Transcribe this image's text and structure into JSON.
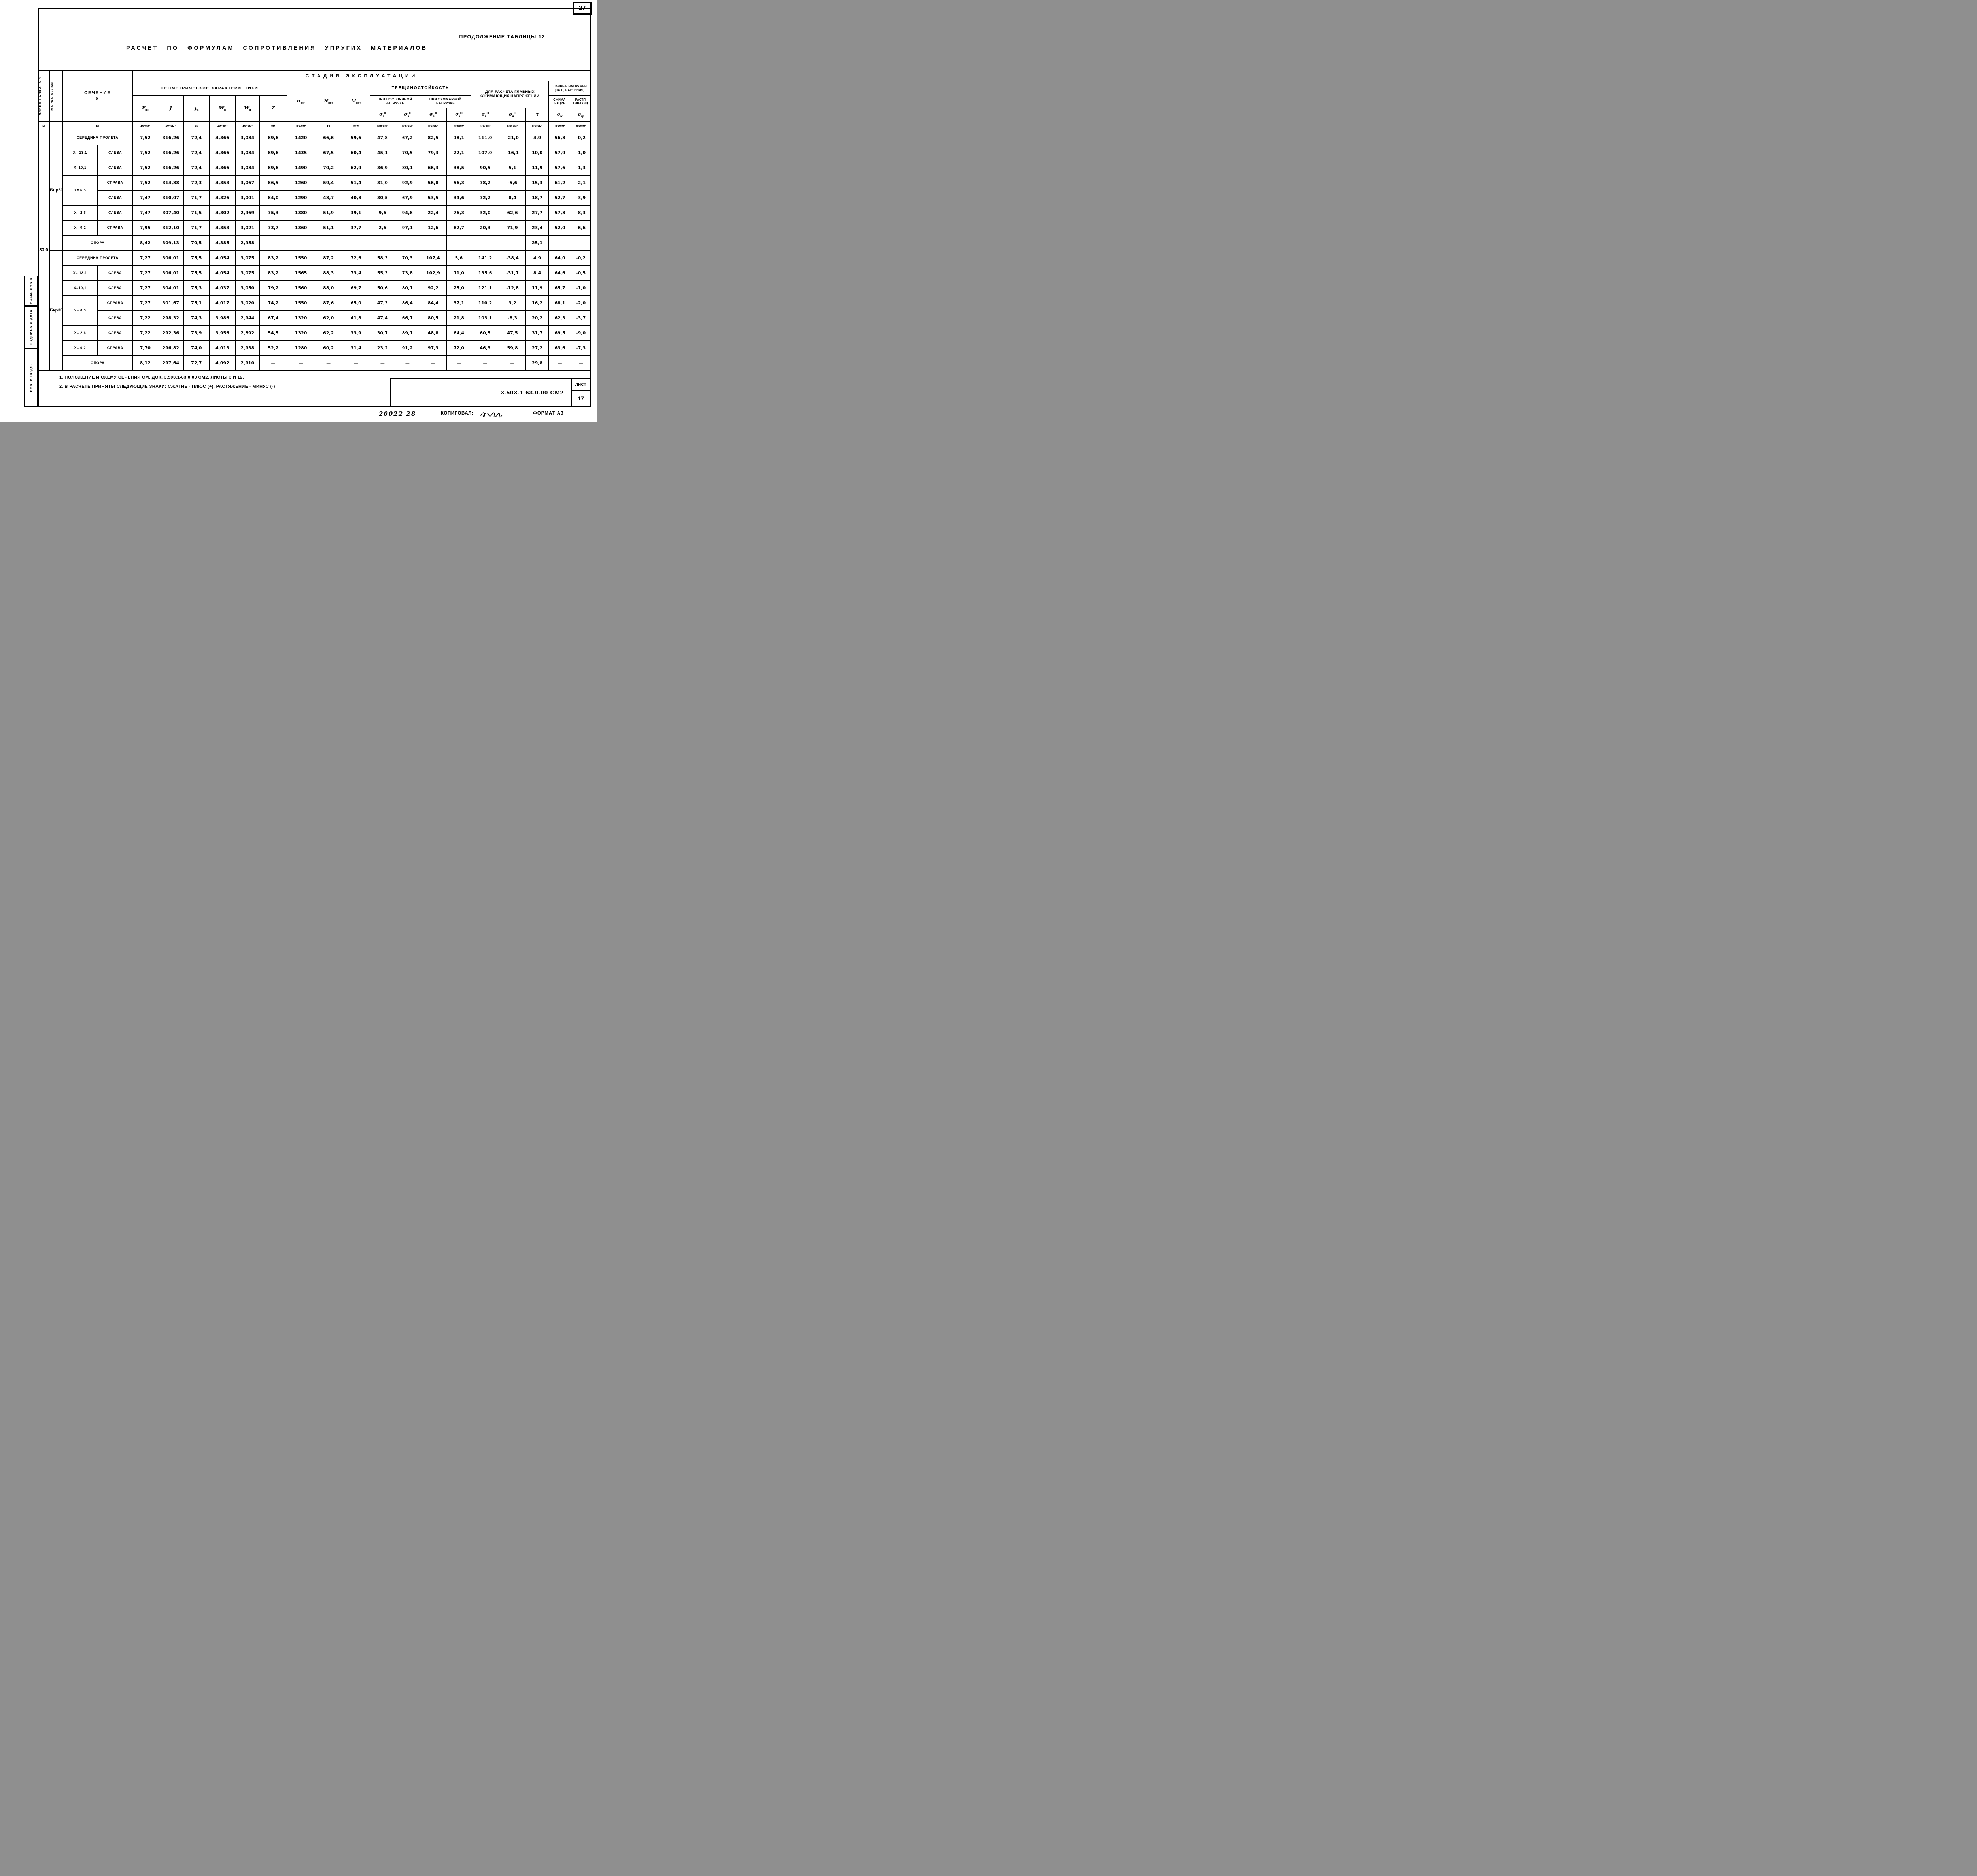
{
  "page": {
    "sheet_number_top": "27",
    "continuation": "ПРОДОЛЖЕНИЕ  ТАБЛИЦЫ 12",
    "title": "РАСЧЕТ ПО ФОРМУЛАМ СОПРОТИВЛЕНИЯ УПРУГИХ МАТЕРИАЛОВ",
    "notes": [
      "1. ПОЛОЖЕНИЕ И СХЕМУ СЕЧЕНИЯ СМ. ДОК. 3.503.1-63.0.00 СМ2, ЛИСТЫ 3 И 12.",
      "2. В РАСЧЕТЕ ПРИНЯТЫ СЛЕДУЮЩИЕ ЗНАКИ: СЖАТИЕ - ПЛЮС (+), РАСТЯЖЕНИЕ - МИНУС (-)"
    ],
    "side_labels": [
      "ВЗАМ. ИНВ.N",
      "ПОДПИСЬ И ДАТА",
      "ИНВ. N ПОДЛ."
    ],
    "stamp": {
      "doc_number": "3.503.1-63.0.00 СМ2",
      "sheet_label": "ЛИСТ",
      "sheet_number": "17"
    },
    "footer": {
      "inventory_number": "20022  28",
      "copied_label": "КОПИРОВАЛ:",
      "format_label": "ФОРМАТ  А3"
    }
  },
  "table": {
    "left_headers": {
      "length": "ДЛИНА БАЛКИ, ℓп",
      "mark": "МАРКА БАЛКИ",
      "section": "СЕЧЕНИЕ",
      "section_x": "X"
    },
    "stage": "СТАДИЯ   ЭКСПЛУАТАЦИИ",
    "groups_header": {
      "geometry": "ГЕОМЕТРИЧЕСКИЕ ХАРАКТЕРИСТИКИ",
      "sigma_pot": {
        "base": "σ",
        "sub": "пот"
      },
      "n_pot": {
        "base": "N",
        "sub": "пот"
      },
      "m_pot": {
        "base": "M",
        "sub": "пот"
      },
      "crack": "ТРЕЩИНОСТОЙКОСТЬ",
      "crack_const": "ПРИ ПОСТОЯННОЙ НАГРУЗКЕ",
      "crack_total": "ПРИ СУММАРНОЙ НАГРУЗКЕ",
      "main_compress": "ДЛЯ РАСЧЕТА ГЛАВ­НЫХ СЖИМАЮЩИХ НАПРЯЖЕНИЙ",
      "principal": "ГЛАВНЫЕ НАПРЯЖЕН. (ПО Ц.Т. СЕЧЕНИЯ)",
      "principal_compress": "СЖИМА­ЮЩИЕ",
      "principal_tension": "РАСТЯ­ГИВАЮЩ."
    },
    "geometry_cols": [
      {
        "base": "F",
        "sub": "пр"
      },
      {
        "base": "J"
      },
      {
        "base": "y",
        "sub": "в"
      },
      {
        "base": "W",
        "sub": "в"
      },
      {
        "base": "W",
        "sub": "н"
      },
      {
        "base": "Z"
      }
    ],
    "symbol_cols": [
      {
        "base": "σ",
        "sub": "в",
        "sup": "II"
      },
      {
        "base": "σ",
        "sub": "н",
        "sup": "II"
      },
      {
        "base": "σ",
        "sub": "в",
        "sup": "III"
      },
      {
        "base": "σ",
        "sub": "н",
        "sup": "III"
      },
      {
        "base": "σ",
        "sub": "в",
        "sup": "III"
      },
      {
        "base": "σ",
        "sub": "н",
        "sup": "III"
      },
      {
        "base": "τ"
      },
      {
        "base": "σ",
        "sub": "гс"
      },
      {
        "base": "σ",
        "sub": "гр"
      }
    ],
    "units_left": [
      "М",
      "—",
      "М"
    ],
    "units": [
      "10³см²",
      "10⁵см⁴",
      "см",
      "10⁵см³",
      "10⁵см³",
      "см",
      "кгс/см²",
      "тс",
      "тс·м",
      "кгс/см²",
      "кгс/см²",
      "кгс/см²",
      "кгс/см²",
      "кгс/см²",
      "кгс/см²",
      "кгс/см²",
      "кгс/см²",
      "кгс/см²"
    ],
    "length_value": "33,0",
    "groups": [
      {
        "mark": "Бпр33",
        "rows": [
          {
            "section": [
              {
                "t": "СЕРЕДИНА ПРОЛЕТА",
                "cs": 2
              }
            ],
            "v": [
              "7,52",
              "316,26",
              "72,4",
              "4,366",
              "3,084",
              "89,6",
              "1420",
              "66,6",
              "59,6",
              "47,8",
              "67,2",
              "82,5",
              "18,1",
              "111,0",
              "-21,0",
              "4,9",
              "56,8",
              "-0,2"
            ]
          },
          {
            "section": [
              {
                "t": "X= 13,1"
              },
              {
                "t": "СЛЕВА"
              }
            ],
            "v": [
              "7,52",
              "316,26",
              "72,4",
              "4,366",
              "3,084",
              "89,6",
              "1435",
              "67,5",
              "60,4",
              "45,1",
              "70,5",
              "79,3",
              "22,1",
              "107,0",
              "-16,1",
              "10,0",
              "57,9",
              "-1,0"
            ]
          },
          {
            "section": [
              {
                "t": "X=10,1"
              },
              {
                "t": "СЛЕВА"
              }
            ],
            "v": [
              "7,52",
              "316,26",
              "72,4",
              "4,366",
              "3,084",
              "89,6",
              "1490",
              "70,2",
              "62,9",
              "36,9",
              "80,1",
              "66,3",
              "38,5",
              "90,5",
              "5,1",
              "11,9",
              "57,6",
              "-1,3"
            ]
          },
          {
            "section": [
              {
                "t": "X= 6,5",
                "rs": 2
              },
              {
                "t": "СПРАВА"
              }
            ],
            "v": [
              "7,52",
              "314,88",
              "72,3",
              "4,353",
              "3,067",
              "86,5",
              "1260",
              "59,4",
              "51,4",
              "31,0",
              "92,9",
              "56,8",
              "56,3",
              "78,2",
              "-5,6",
              "15,3",
              "61,2",
              "-2,1"
            ]
          },
          {
            "section": [
              {
                "t": "СЛЕВА"
              }
            ],
            "v": [
              "7,47",
              "310,07",
              "71,7",
              "4,326",
              "3,001",
              "84,0",
              "1290",
              "48,7",
              "40,8",
              "30,5",
              "67,9",
              "53,5",
              "34,6",
              "72,2",
              "8,4",
              "18,7",
              "52,7",
              "-3,9"
            ]
          },
          {
            "section": [
              {
                "t": "X= 2,6"
              },
              {
                "t": "СЛЕВА"
              }
            ],
            "v": [
              "7,47",
              "307,40",
              "71,5",
              "4,302",
              "2,969",
              "75,3",
              "1380",
              "51,9",
              "39,1",
              "9,6",
              "94,8",
              "22,4",
              "76,3",
              "32,0",
              "62,6",
              "27,7",
              "57,8",
              "-8,3"
            ]
          },
          {
            "section": [
              {
                "t": "X= 0,2"
              },
              {
                "t": "СПРАВА"
              }
            ],
            "v": [
              "7,95",
              "312,10",
              "71,7",
              "4,353",
              "3,021",
              "73,7",
              "1360",
              "51,1",
              "37,7",
              "2,6",
              "97,1",
              "12,6",
              "82,7",
              "20,3",
              "71,9",
              "23,4",
              "52,0",
              "-6,6"
            ]
          },
          {
            "section": [
              {
                "t": "ОПОРА",
                "cs": 2
              }
            ],
            "v": [
              "8,42",
              "309,13",
              "70,5",
              "4,385",
              "2,958",
              "—",
              "—",
              "—",
              "—",
              "—",
              "—",
              "—",
              "—",
              "—",
              "—",
              "25,1",
              "—",
              "—"
            ]
          }
        ]
      },
      {
        "mark": "Бкр33",
        "rows": [
          {
            "section": [
              {
                "t": "СЕРЕДИНА ПРОЛЕТА",
                "cs": 2
              }
            ],
            "v": [
              "7,27",
              "306,01",
              "75,5",
              "4,054",
              "3,075",
              "83,2",
              "1550",
              "87,2",
              "72,6",
              "58,3",
              "70,3",
              "107,4",
              "5,6",
              "141,2",
              "-38,4",
              "4,9",
              "64,0",
              "-0,2"
            ]
          },
          {
            "section": [
              {
                "t": "X= 13,1"
              },
              {
                "t": "СЛЕВА"
              }
            ],
            "v": [
              "7,27",
              "306,01",
              "75,5",
              "4,054",
              "3,075",
              "83,2",
              "1565",
              "88,3",
              "73,4",
              "55,3",
              "73,8",
              "102,9",
              "11,0",
              "135,6",
              "-31,7",
              "8,4",
              "64,6",
              "-0,5"
            ]
          },
          {
            "section": [
              {
                "t": "X=10,1"
              },
              {
                "t": "СЛЕВА"
              }
            ],
            "v": [
              "7,27",
              "304,01",
              "75,3",
              "4,037",
              "3,050",
              "79,2",
              "1560",
              "88,0",
              "69,7",
              "50,6",
              "80,1",
              "92,2",
              "25,0",
              "121,1",
              "-12,8",
              "11,9",
              "65,7",
              "-1,0"
            ]
          },
          {
            "section": [
              {
                "t": "X= 6,5",
                "rs": 2
              },
              {
                "t": "СПРАВА"
              }
            ],
            "v": [
              "7,27",
              "301,67",
              "75,1",
              "4,017",
              "3,020",
              "74,2",
              "1550",
              "87,6",
              "65,0",
              "47,3",
              "86,4",
              "84,4",
              "37,1",
              "110,2",
              "3,2",
              "16,2",
              "68,1",
              "-2,0"
            ]
          },
          {
            "section": [
              {
                "t": "СЛЕВА"
              }
            ],
            "v": [
              "7,22",
              "298,32",
              "74,3",
              "3,986",
              "2,944",
              "67,4",
              "1320",
              "62,0",
              "41,8",
              "47,4",
              "66,7",
              "80,5",
              "21,8",
              "103,1",
              "-8,3",
              "20,2",
              "62,3",
              "-3,7"
            ]
          },
          {
            "section": [
              {
                "t": "X= 2,6"
              },
              {
                "t": "СЛЕВА"
              }
            ],
            "v": [
              "7,22",
              "292,36",
              "73,9",
              "3,956",
              "2,892",
              "54,5",
              "1320",
              "62,2",
              "33,9",
              "30,7",
              "89,1",
              "48,8",
              "64,4",
              "60,5",
              "47,5",
              "31,7",
              "69,5",
              "-9,0"
            ]
          },
          {
            "section": [
              {
                "t": "X= 0,2"
              },
              {
                "t": "СПРАВА"
              }
            ],
            "v": [
              "7,70",
              "296,82",
              "74,0",
              "4,013",
              "2,938",
              "52,2",
              "1280",
              "60,2",
              "31,4",
              "23,2",
              "91,2",
              "97,3",
              "72,0",
              "46,3",
              "59,8",
              "27,2",
              "63,6",
              "-7,3"
            ]
          },
          {
            "section": [
              {
                "t": "ОПОРА",
                "cs": 2
              }
            ],
            "v": [
              "8,12",
              "297,64",
              "72,7",
              "4,092",
              "2,910",
              "—",
              "—",
              "—",
              "—",
              "—",
              "—",
              "—",
              "—",
              "—",
              "—",
              "29,8",
              "—",
              "—"
            ]
          }
        ]
      }
    ]
  }
}
